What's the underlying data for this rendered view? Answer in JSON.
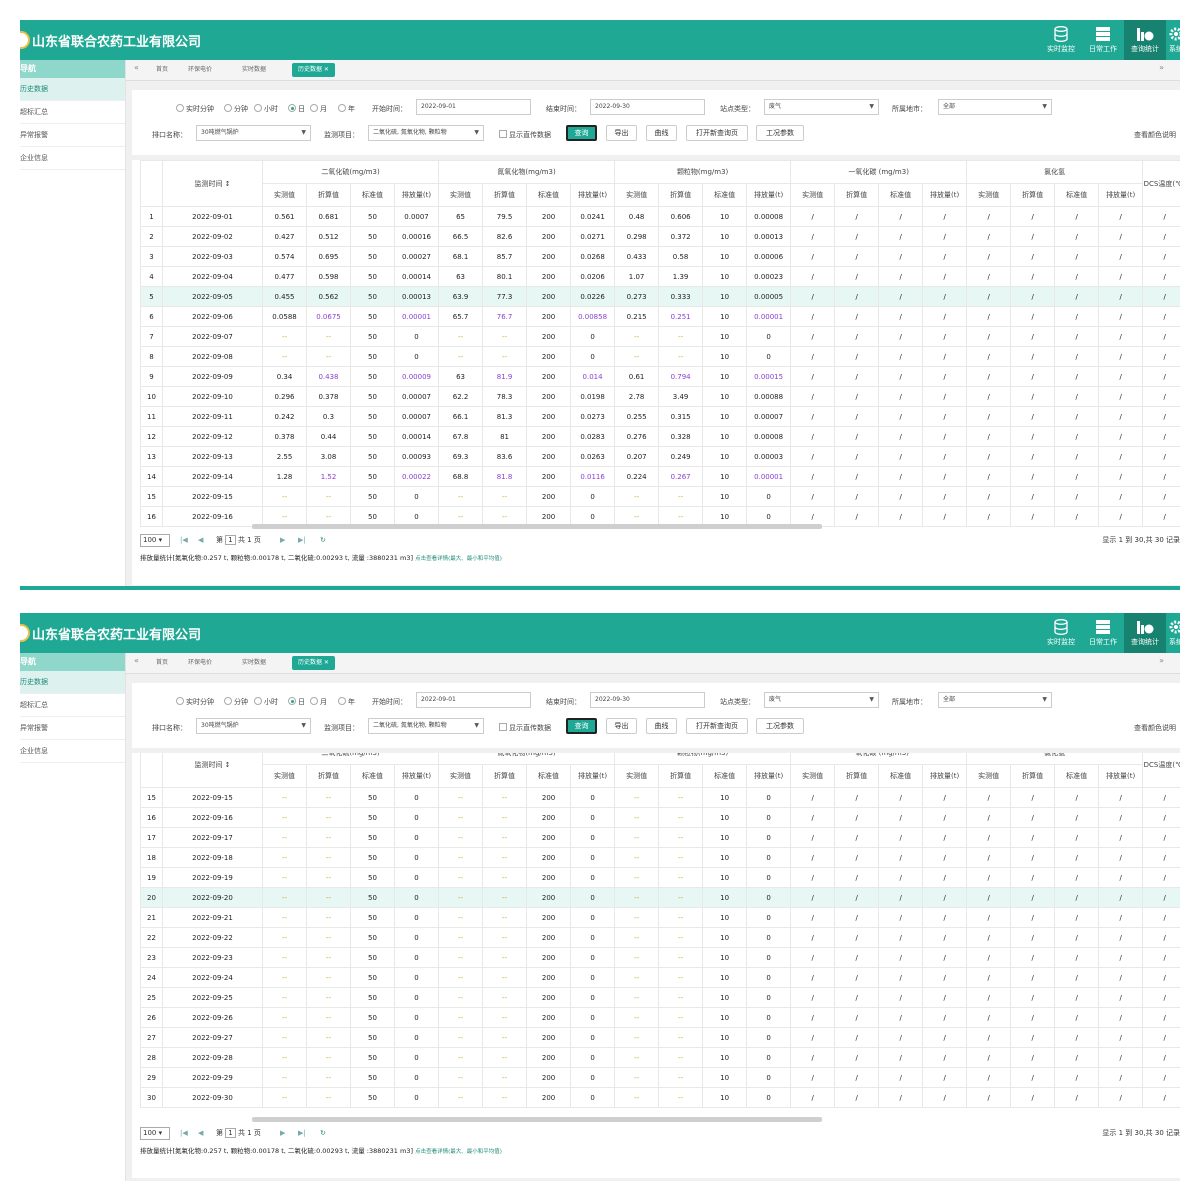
{
  "app": {
    "title": "山东省联合农药工业有限公司",
    "nav": [
      {
        "label": "实时监控",
        "icon": "database-icon",
        "active": false
      },
      {
        "label": "日常工作",
        "icon": "server-icon",
        "active": false
      },
      {
        "label": "查询统计",
        "icon": "chart-icon",
        "active": true
      },
      {
        "label": "系统",
        "icon": "gear-icon",
        "active": false
      }
    ]
  },
  "sidebar": {
    "header": "导航",
    "items": [
      "历史数据",
      "超标汇总",
      "异常报警",
      "企业信息"
    ]
  },
  "tabs": {
    "nav_left": "«",
    "nav_right": "»",
    "items": [
      "首页",
      "环保电价",
      "实时数据",
      "历史数据"
    ]
  },
  "filters": {
    "granularity": [
      "实时分钟",
      "分钟",
      "小时",
      "日",
      "月",
      "年"
    ],
    "selected_granularity": "日",
    "start_label": "开始时间：",
    "start_value": "2022-09-01",
    "end_label": "结束时间：",
    "end_value": "2022-09-30",
    "station_type_label": "站点类型：",
    "station_type_value": "废气",
    "city_label": "所属地市：",
    "city_value": "全部",
    "outlet_label": "排口名称：",
    "outlet_value": "30吨燃气锅炉",
    "item_label": "监测项目：",
    "item_value": "二氧化硫, 氮氧化物, 颗粒物",
    "show_direct": "显示直传数据",
    "buttons": {
      "query": "查询",
      "export": "导出",
      "curve": "曲线",
      "open_new": "打开新查询页",
      "params": "工况参数"
    },
    "color_legend": "查看颜色说明"
  },
  "table": {
    "time_header": "监测时间 ↕",
    "groups": [
      "二氧化硫(mg/m3)",
      "氮氧化物(mg/m3)",
      "颗粒物(mg/m3)",
      "一氧化碳 (mg/m3)",
      "氯化氢"
    ],
    "dcs_header": "DCS温度(℃)",
    "sub_headers": [
      "实测值",
      "折算值",
      "标准值",
      "排放量(t)"
    ],
    "rows": [
      [
        "1",
        "2022-09-01",
        "0.561",
        "0.681",
        "50",
        "0.0007",
        "65",
        "79.5",
        "200",
        "0.0241",
        "0.48",
        "0.606",
        "10",
        "0.00008"
      ],
      [
        "2",
        "2022-09-02",
        "0.427",
        "0.512",
        "50",
        "0.00016",
        "66.5",
        "82.6",
        "200",
        "0.0271",
        "0.298",
        "0.372",
        "10",
        "0.00013"
      ],
      [
        "3",
        "2022-09-03",
        "0.574",
        "0.695",
        "50",
        "0.00027",
        "68.1",
        "85.7",
        "200",
        "0.0268",
        "0.433",
        "0.58",
        "10",
        "0.00006"
      ],
      [
        "4",
        "2022-09-04",
        "0.477",
        "0.598",
        "50",
        "0.00014",
        "63",
        "80.1",
        "200",
        "0.0206",
        "1.07",
        "1.39",
        "10",
        "0.00023"
      ],
      [
        "5",
        "2022-09-05",
        "0.455",
        "0.562",
        "50",
        "0.00013",
        "63.9",
        "77.3",
        "200",
        "0.0226",
        "0.273",
        "0.333",
        "10",
        "0.00005"
      ],
      [
        "6",
        "2022-09-06",
        "0.0588",
        "0.0675",
        "50",
        "0.00001",
        "65.7",
        "76.7",
        "200",
        "0.00858",
        "0.215",
        "0.251",
        "10",
        "0.00001"
      ],
      [
        "7",
        "2022-09-07",
        "--",
        "--",
        "50",
        "0",
        "--",
        "--",
        "200",
        "0",
        "--",
        "--",
        "10",
        "0"
      ],
      [
        "8",
        "2022-09-08",
        "--",
        "--",
        "50",
        "0",
        "--",
        "--",
        "200",
        "0",
        "--",
        "--",
        "10",
        "0"
      ],
      [
        "9",
        "2022-09-09",
        "0.34",
        "0.438",
        "50",
        "0.00009",
        "63",
        "81.9",
        "200",
        "0.014",
        "0.61",
        "0.794",
        "10",
        "0.00015"
      ],
      [
        "10",
        "2022-09-10",
        "0.296",
        "0.378",
        "50",
        "0.00007",
        "62.2",
        "78.3",
        "200",
        "0.0198",
        "2.78",
        "3.49",
        "10",
        "0.00088"
      ],
      [
        "11",
        "2022-09-11",
        "0.242",
        "0.3",
        "50",
        "0.00007",
        "66.1",
        "81.3",
        "200",
        "0.0273",
        "0.255",
        "0.315",
        "10",
        "0.00007"
      ],
      [
        "12",
        "2022-09-12",
        "0.378",
        "0.44",
        "50",
        "0.00014",
        "67.8",
        "81",
        "200",
        "0.0283",
        "0.276",
        "0.328",
        "10",
        "0.00008"
      ],
      [
        "13",
        "2022-09-13",
        "2.55",
        "3.08",
        "50",
        "0.00093",
        "69.3",
        "83.6",
        "200",
        "0.0263",
        "0.207",
        "0.249",
        "10",
        "0.00003"
      ],
      [
        "14",
        "2022-09-14",
        "1.28",
        "1.52",
        "50",
        "0.00022",
        "68.8",
        "81.8",
        "200",
        "0.0116",
        "0.224",
        "0.267",
        "10",
        "0.00001"
      ],
      [
        "15",
        "2022-09-15",
        "--",
        "--",
        "50",
        "0",
        "--",
        "--",
        "200",
        "0",
        "--",
        "--",
        "10",
        "0"
      ],
      [
        "16",
        "2022-09-16",
        "--",
        "--",
        "50",
        "0",
        "--",
        "--",
        "200",
        "0",
        "--",
        "--",
        "10",
        "0"
      ],
      [
        "17",
        "2022-09-17",
        "--",
        "--",
        "50",
        "0",
        "--",
        "--",
        "200",
        "0",
        "--",
        "--",
        "10",
        "0"
      ],
      [
        "18",
        "2022-09-18",
        "--",
        "--",
        "50",
        "0",
        "--",
        "--",
        "200",
        "0",
        "--",
        "--",
        "10",
        "0"
      ],
      [
        "19",
        "2022-09-19",
        "--",
        "--",
        "50",
        "0",
        "--",
        "--",
        "200",
        "0",
        "--",
        "--",
        "10",
        "0"
      ],
      [
        "20",
        "2022-09-20",
        "--",
        "--",
        "50",
        "0",
        "--",
        "--",
        "200",
        "0",
        "--",
        "--",
        "10",
        "0"
      ],
      [
        "21",
        "2022-09-21",
        "--",
        "--",
        "50",
        "0",
        "--",
        "--",
        "200",
        "0",
        "--",
        "--",
        "10",
        "0"
      ],
      [
        "22",
        "2022-09-22",
        "--",
        "--",
        "50",
        "0",
        "--",
        "--",
        "200",
        "0",
        "--",
        "--",
        "10",
        "0"
      ],
      [
        "23",
        "2022-09-23",
        "--",
        "--",
        "50",
        "0",
        "--",
        "--",
        "200",
        "0",
        "--",
        "--",
        "10",
        "0"
      ],
      [
        "24",
        "2022-09-24",
        "--",
        "--",
        "50",
        "0",
        "--",
        "--",
        "200",
        "0",
        "--",
        "--",
        "10",
        "0"
      ],
      [
        "25",
        "2022-09-25",
        "--",
        "--",
        "50",
        "0",
        "--",
        "--",
        "200",
        "0",
        "--",
        "--",
        "10",
        "0"
      ],
      [
        "26",
        "2022-09-26",
        "--",
        "--",
        "50",
        "0",
        "--",
        "--",
        "200",
        "0",
        "--",
        "--",
        "10",
        "0"
      ],
      [
        "27",
        "2022-09-27",
        "--",
        "--",
        "50",
        "0",
        "--",
        "--",
        "200",
        "0",
        "--",
        "--",
        "10",
        "0"
      ],
      [
        "28",
        "2022-09-28",
        "--",
        "--",
        "50",
        "0",
        "--",
        "--",
        "200",
        "0",
        "--",
        "--",
        "10",
        "0"
      ],
      [
        "29",
        "2022-09-29",
        "--",
        "--",
        "50",
        "0",
        "--",
        "--",
        "200",
        "0",
        "--",
        "--",
        "10",
        "0"
      ],
      [
        "30",
        "2022-09-30",
        "--",
        "--",
        "50",
        "0",
        "--",
        "--",
        "200",
        "0",
        "--",
        "--",
        "10",
        "0"
      ]
    ],
    "purple_rows": [
      6,
      9,
      14
    ],
    "empty_cell": "/"
  },
  "pager": {
    "page_size": "100",
    "page_prefix": "第",
    "page": "1",
    "page_suffix": "共 1 页",
    "display_info": "显示 1 到 30,共 30 记录"
  },
  "summary": {
    "text": "排放量统计[氮氧化物:0.257 t, 颗粒物:0.00178 t, 二氧化硫:0.00293 t, 流量 :3880231 m3]",
    "hint": "点击查看详情(最大、最小和平均值)"
  },
  "views": [
    {
      "first_row": 1,
      "visible_rows": 16,
      "highlight_row": 5
    },
    {
      "first_row": 15,
      "visible_rows": 16,
      "highlight_row": 20
    }
  ]
}
